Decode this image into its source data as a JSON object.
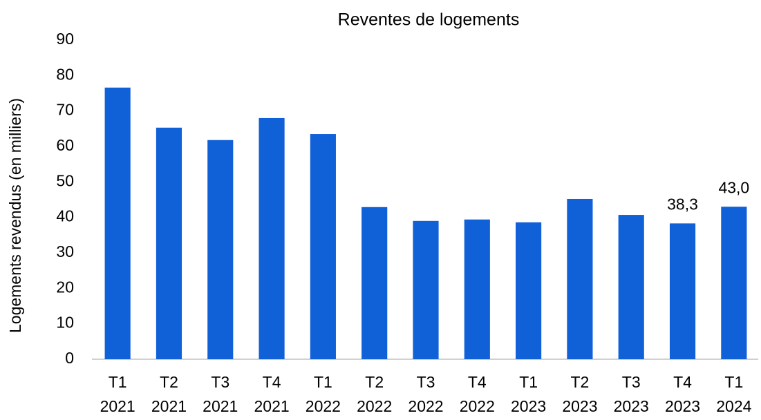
{
  "chart_data": {
    "type": "bar",
    "title": "Reventes de logements",
    "y_label": "Logements revendus (en milliers)",
    "categories": [
      [
        "T1",
        "2021"
      ],
      [
        "T2",
        "2021"
      ],
      [
        "T3",
        "2021"
      ],
      [
        "T4",
        "2021"
      ],
      [
        "T1",
        "2022"
      ],
      [
        "T2",
        "2022"
      ],
      [
        "T3",
        "2022"
      ],
      [
        "T4",
        "2022"
      ],
      [
        "T1",
        "2023"
      ],
      [
        "T2",
        "2023"
      ],
      [
        "T3",
        "2023"
      ],
      [
        "T4",
        "2023"
      ],
      [
        "T1",
        "2024"
      ]
    ],
    "values": [
      76.6,
      65.3,
      61.8,
      68.0,
      63.5,
      42.9,
      39.0,
      39.4,
      38.6,
      45.2,
      40.7,
      38.3,
      43.0
    ],
    "value_labels": [
      null,
      null,
      null,
      null,
      null,
      null,
      null,
      null,
      null,
      null,
      null,
      "38,3",
      "43,0"
    ],
    "color": "#1060d8",
    "ylim": [
      0,
      90
    ],
    "yticks": [
      0,
      10,
      20,
      30,
      40,
      50,
      60,
      70,
      80,
      90
    ],
    "grid": false
  }
}
